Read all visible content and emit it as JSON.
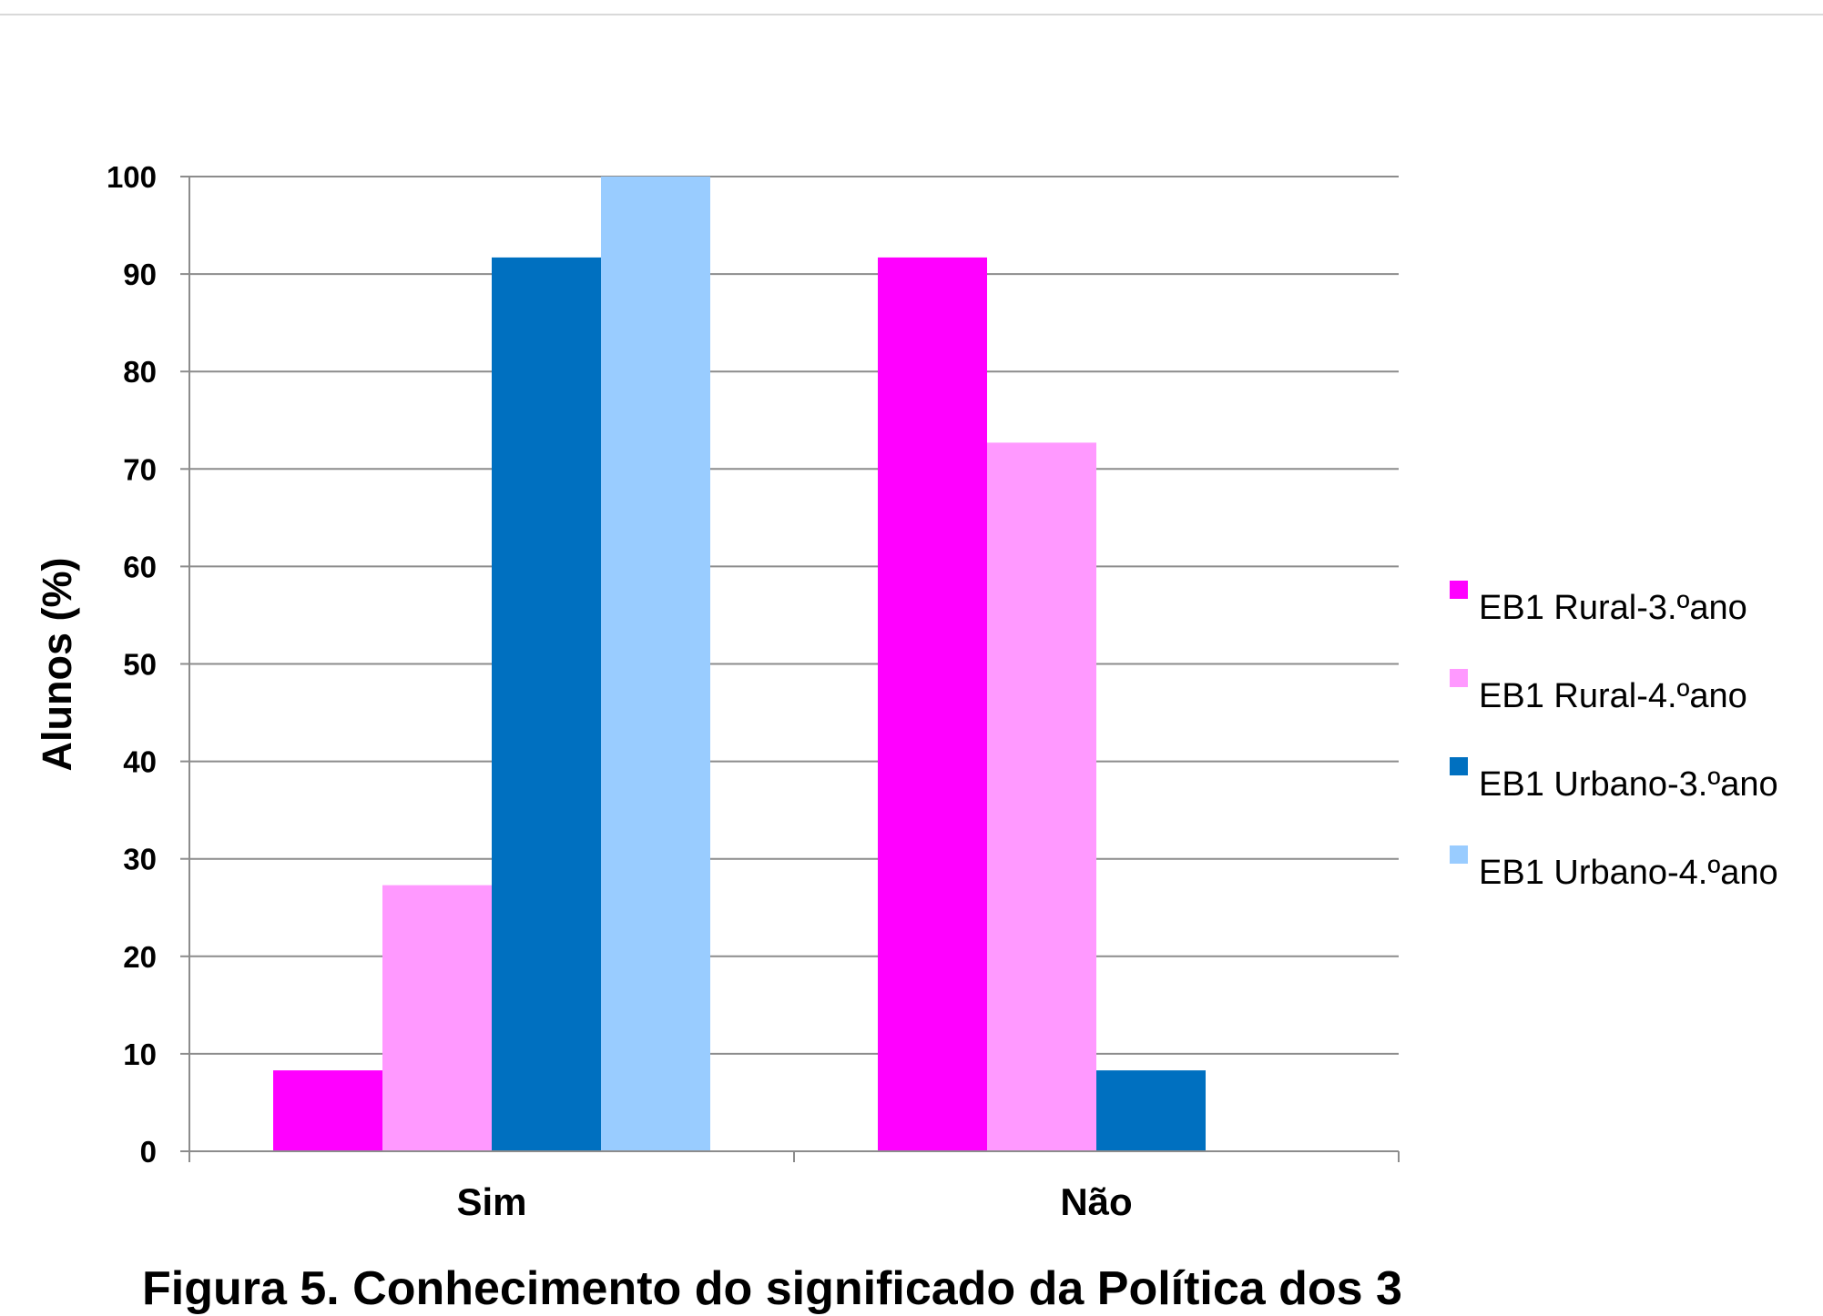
{
  "caption": "Figura 5. Conhecimento do significado da Política dos 3",
  "chart_data": {
    "type": "bar",
    "categories": [
      "Sim",
      "Não"
    ],
    "series": [
      {
        "name": "EB1 Rural-3.ºano",
        "values": [
          8.3,
          91.7
        ],
        "color": "#ff00ff"
      },
      {
        "name": "EB1 Rural-4.ºano",
        "values": [
          27.3,
          72.7
        ],
        "color": "#ff99ff"
      },
      {
        "name": "EB1 Urbano-3.ºano",
        "values": [
          91.7,
          8.3
        ],
        "color": "#0070c0"
      },
      {
        "name": "EB1 Urbano-4.ºano",
        "values": [
          100,
          0
        ],
        "color": "#99ccff"
      }
    ],
    "title": "",
    "xlabel": "",
    "ylabel": "Alunos (%)",
    "ylim": [
      0,
      100
    ],
    "yticks": [
      0,
      10,
      20,
      30,
      40,
      50,
      60,
      70,
      80,
      90,
      100
    ],
    "grid": true,
    "legend": "right"
  }
}
